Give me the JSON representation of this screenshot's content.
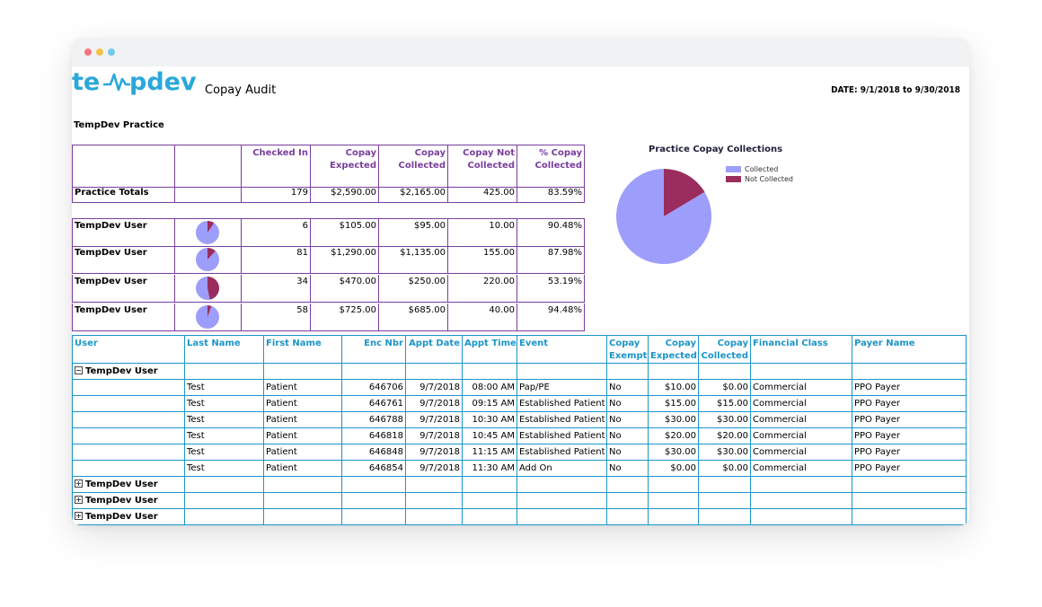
{
  "window": {
    "title_dots": [
      "close",
      "minimize",
      "maximize"
    ]
  },
  "logo": {
    "text": "tempdev",
    "color": "#2aa8d9"
  },
  "report": {
    "title": "Copay Audit",
    "date_range": "DATE: 9/1/2018 to 9/30/2018",
    "practice": "TempDev Practice"
  },
  "summary": {
    "headers": [
      "",
      "",
      "Checked In",
      "Copay Expected",
      "Copay Collected",
      "Copay Not Collected",
      "% Copay Collected"
    ],
    "totals": {
      "label": "Practice Totals",
      "checked_in": "179",
      "expected": "$2,590.00",
      "collected": "$2,165.00",
      "not_collected": "425.00",
      "pct": "83.59%"
    },
    "users": [
      {
        "name": "TempDev User",
        "checked_in": "6",
        "expected": "$105.00",
        "collected": "$95.00",
        "not_collected": "10.00",
        "pct": "90.48%",
        "pct_value": 0.9048
      },
      {
        "name": "TempDev User",
        "checked_in": "81",
        "expected": "$1,290.00",
        "collected": "$1,135.00",
        "not_collected": "155.00",
        "pct": "87.98%",
        "pct_value": 0.8798
      },
      {
        "name": "TempDev User",
        "checked_in": "34",
        "expected": "$470.00",
        "collected": "$250.00",
        "not_collected": "220.00",
        "pct": "53.19%",
        "pct_value": 0.5319
      },
      {
        "name": "TempDev User",
        "checked_in": "58",
        "expected": "$725.00",
        "collected": "$685.00",
        "not_collected": "40.00",
        "pct": "94.48%",
        "pct_value": 0.9448
      }
    ]
  },
  "chart_data": {
    "type": "pie",
    "title": "Practice Copay Collections",
    "categories": [
      "Collected",
      "Not Collected"
    ],
    "values": [
      2165,
      425
    ],
    "colors": [
      "#9d9dfb",
      "#9a2d5e"
    ],
    "legend": "top-right"
  },
  "detail": {
    "headers": [
      "User",
      "Last Name",
      "First Name",
      "Enc Nbr",
      "Appt Date",
      "Appt Time",
      "Event",
      "Copay Exempt",
      "Copay Expected",
      "Copay Collected",
      "Financial Class",
      "Payer Name"
    ],
    "expanded_group": "TempDev User",
    "rows": [
      [
        "",
        "Test",
        "Patient",
        "646706",
        "9/7/2018",
        "08:00 AM",
        "Pap/PE",
        "No",
        "$10.00",
        "$0.00",
        "Commercial",
        "PPO Payer"
      ],
      [
        "",
        "Test",
        "Patient",
        "646761",
        "9/7/2018",
        "09:15 AM",
        "Established Patient",
        "No",
        "$15.00",
        "$15.00",
        "Commercial",
        "PPO Payer"
      ],
      [
        "",
        "Test",
        "Patient",
        "646788",
        "9/7/2018",
        "10:30 AM",
        "Established Patient",
        "No",
        "$30.00",
        "$30.00",
        "Commercial",
        "PPO Payer"
      ],
      [
        "",
        "Test",
        "Patient",
        "646818",
        "9/7/2018",
        "10:45 AM",
        "Established Patient",
        "No",
        "$20.00",
        "$20.00",
        "Commercial",
        "PPO Payer"
      ],
      [
        "",
        "Test",
        "Patient",
        "646848",
        "9/7/2018",
        "11:15 AM",
        "Established Patient",
        "No",
        "$30.00",
        "$30.00",
        "Commercial",
        "PPO Payer"
      ],
      [
        "",
        "Test",
        "Patient",
        "646854",
        "9/7/2018",
        "11:30 AM",
        "Add On",
        "No",
        "$0.00",
        "$0.00",
        "Commercial",
        "PPO Payer"
      ]
    ],
    "collapsed_groups": [
      "TempDev User",
      "TempDev User",
      "TempDev User"
    ]
  },
  "colors": {
    "accent_purple": "#7a3e9d",
    "accent_blue": "#1b95c8",
    "brand": "#2aa8d9"
  }
}
